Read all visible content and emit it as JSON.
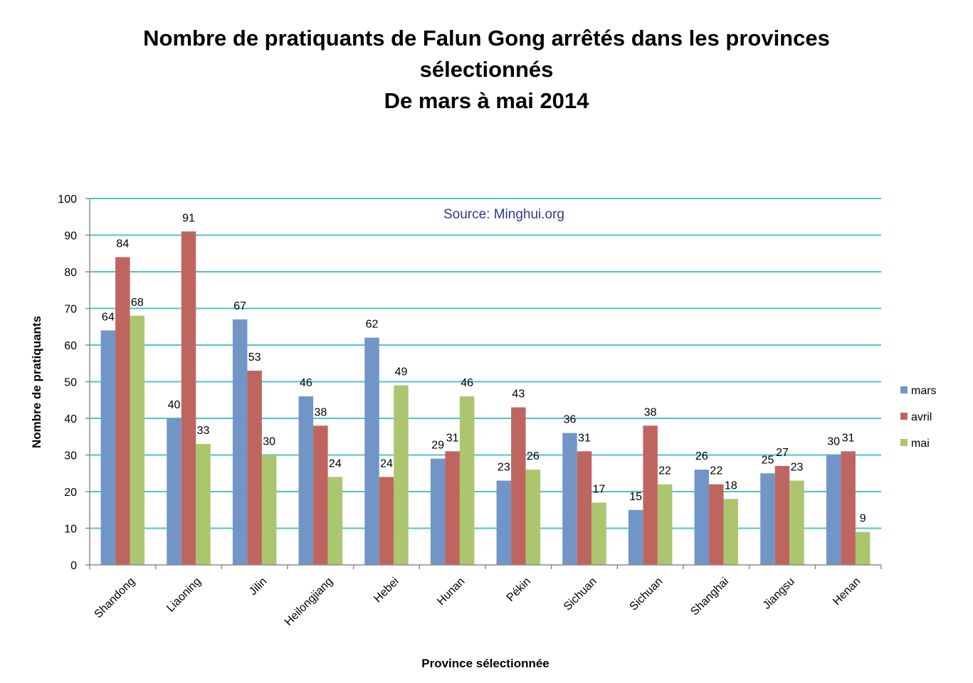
{
  "chart_data": {
    "type": "bar",
    "title_lines": [
      "Nombre de pratiquants de Falun Gong arrêtés dans les provinces",
      "sélectionnés",
      "De mars à mai 2014"
    ],
    "xlabel": "Province sélectionnée",
    "ylabel": "Nombre de pratiquants",
    "annotation": "Source: Minghui.org",
    "ylim": [
      0,
      100
    ],
    "yticks": [
      0,
      10,
      20,
      30,
      40,
      50,
      60,
      70,
      80,
      90,
      100
    ],
    "grid": true,
    "legend_position": "right",
    "categories": [
      "Shandong",
      "Liaoning",
      "Jilin",
      "Heilongjiang",
      "Hebei",
      "Hunan",
      "Pékin",
      "Sichuan",
      "Sichuan",
      "Shanghai",
      "Jiangsu",
      "Henan"
    ],
    "series": [
      {
        "name": "mars",
        "color": "#7295c7",
        "values": [
          64,
          40,
          67,
          46,
          62,
          29,
          23,
          36,
          15,
          26,
          25,
          30
        ]
      },
      {
        "name": "avril",
        "color": "#bf6560",
        "values": [
          84,
          91,
          53,
          38,
          24,
          31,
          43,
          31,
          38,
          22,
          27,
          31
        ]
      },
      {
        "name": "mai",
        "color": "#abc66e",
        "values": [
          68,
          33,
          30,
          24,
          49,
          46,
          26,
          17,
          22,
          18,
          23,
          9
        ]
      }
    ],
    "colors": {
      "gridline": "#4fc3c8",
      "axis": "#8c8c8c",
      "source_text": "#2e3a8c"
    }
  }
}
